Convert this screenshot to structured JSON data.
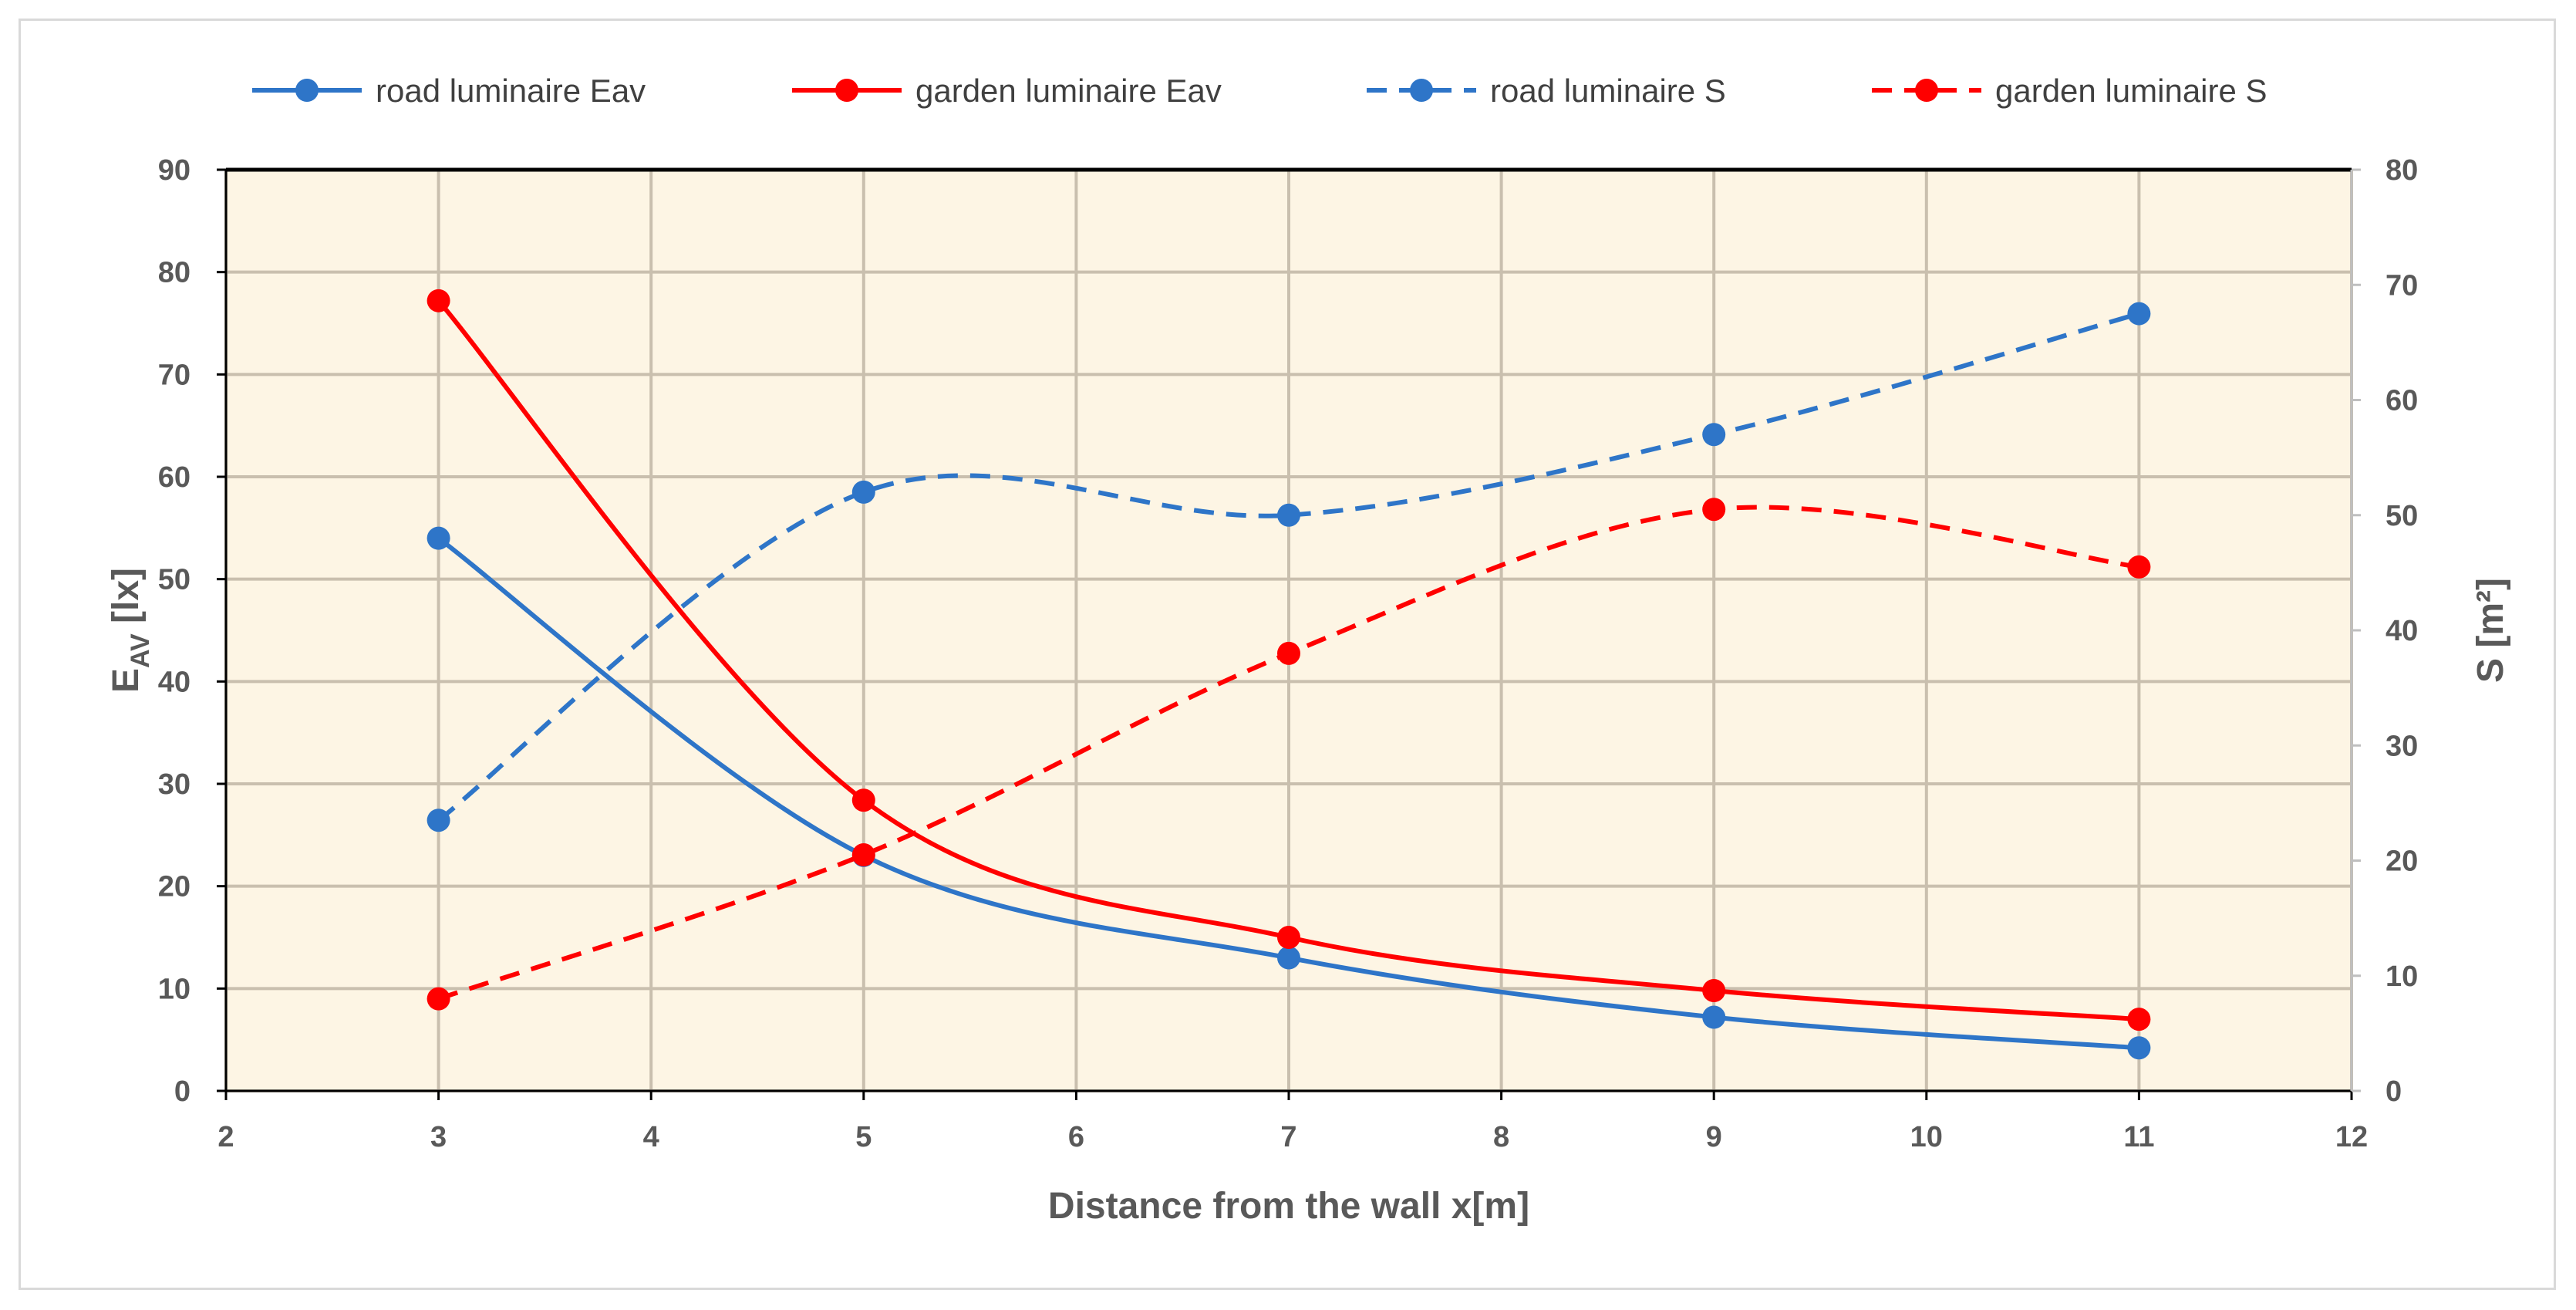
{
  "chart_data": {
    "type": "line",
    "title": "",
    "xlabel": "Distance from the wall x[m]",
    "ylabel_main": "E",
    "ylabel_sub": "AV",
    "ylabel_unit": " [lx]",
    "ylabel2": "S [m²]",
    "xlim": [
      2,
      12
    ],
    "ylim": [
      0,
      90
    ],
    "y2lim": [
      0,
      80
    ],
    "xticks": [
      "2",
      "3",
      "4",
      "5",
      "6",
      "7",
      "8",
      "9",
      "10",
      "11",
      "12"
    ],
    "yticks": [
      "0",
      "10",
      "20",
      "30",
      "40",
      "50",
      "60",
      "70",
      "80",
      "90"
    ],
    "y2ticks": [
      "0",
      "10",
      "20",
      "30",
      "40",
      "50",
      "60",
      "70",
      "80"
    ],
    "grid": true,
    "plot_background": "#fdf5e4",
    "grid_color": "#c9bfae",
    "legend_position": "top",
    "series": [
      {
        "name": "road luminaire Eav",
        "axis": "left",
        "style": "solid",
        "color": "#2e75c8",
        "x": [
          3,
          5,
          7,
          9,
          11
        ],
        "values": [
          54,
          23,
          13,
          7.2,
          4.2
        ]
      },
      {
        "name": "garden luminaire Eav",
        "axis": "left",
        "style": "solid",
        "color": "#ff0000",
        "x": [
          3,
          5,
          7,
          9,
          11
        ],
        "values": [
          77.2,
          28.4,
          15,
          9.8,
          7
        ]
      },
      {
        "name": "road luminaire S",
        "axis": "right",
        "style": "dashed",
        "color": "#2e75c8",
        "x": [
          3,
          5,
          7,
          9,
          11
        ],
        "values": [
          23.5,
          52,
          50,
          57,
          67.5
        ]
      },
      {
        "name": "garden luminaire S",
        "axis": "right",
        "style": "dashed",
        "color": "#ff0000",
        "x": [
          3,
          5,
          7,
          9,
          11
        ],
        "values": [
          8,
          20.5,
          38,
          50.5,
          45.5
        ]
      }
    ]
  }
}
